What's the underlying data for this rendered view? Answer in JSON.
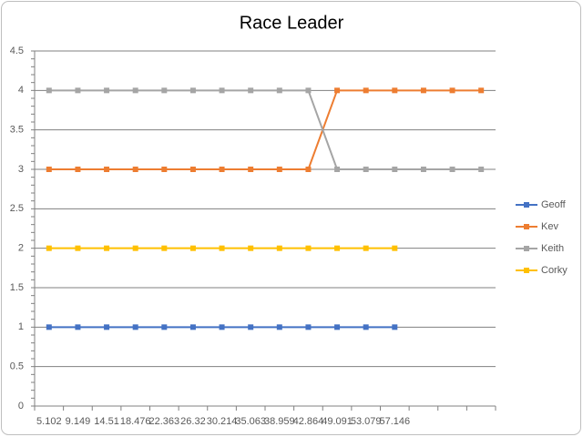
{
  "chart_data": {
    "type": "line",
    "title": "Race Leader",
    "categories": [
      "5.102",
      "9.149",
      "14.51",
      "18.476",
      "22.363",
      "26.32",
      "30.214",
      "35.063",
      "38.959",
      "42.864",
      "49.091",
      "53.079",
      "57.146",
      null,
      null,
      null
    ],
    "series": [
      {
        "name": "Geoff",
        "color": "#4472c4",
        "values": [
          1,
          1,
          1,
          1,
          1,
          1,
          1,
          1,
          1,
          1,
          1,
          1,
          1,
          null,
          null,
          null
        ]
      },
      {
        "name": "Kev",
        "color": "#ed7d31",
        "values": [
          3,
          3,
          3,
          3,
          3,
          3,
          3,
          3,
          3,
          3,
          4,
          4,
          4,
          4,
          4,
          4
        ]
      },
      {
        "name": "Keith",
        "color": "#a5a5a5",
        "values": [
          4,
          4,
          4,
          4,
          4,
          4,
          4,
          4,
          4,
          4,
          3,
          3,
          3,
          3,
          3,
          3
        ]
      },
      {
        "name": "Corky",
        "color": "#ffc000",
        "values": [
          2,
          2,
          2,
          2,
          2,
          2,
          2,
          2,
          2,
          2,
          2,
          2,
          2,
          null,
          null,
          null
        ]
      }
    ],
    "ylim": [
      0,
      4.5
    ],
    "yticks": [
      0,
      0.5,
      1,
      1.5,
      2,
      2.5,
      3,
      3.5,
      4,
      4.5
    ],
    "grid": true,
    "legend": "right"
  }
}
